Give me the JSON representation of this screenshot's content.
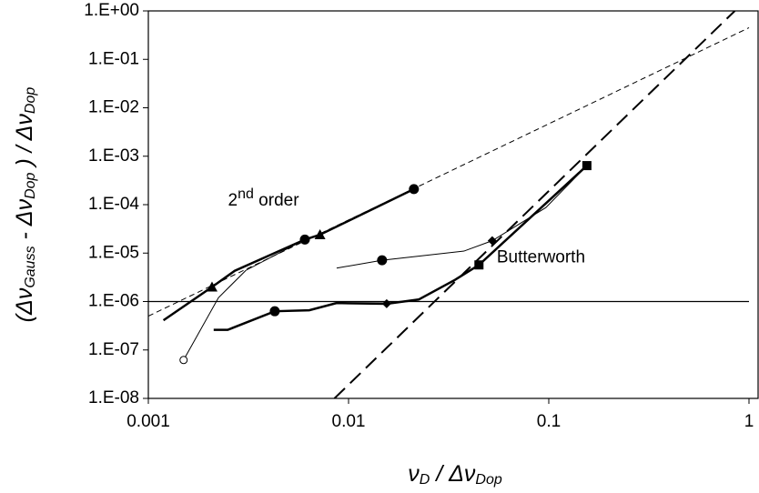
{
  "chart_data": {
    "type": "line",
    "log_x": true,
    "log_y": true,
    "xlim": [
      0.001,
      1
    ],
    "xticks": [
      0.001,
      0.01,
      0.1,
      1
    ],
    "ylim": [
      1e-08,
      1
    ],
    "yticks": [
      {
        "value": 1e-08,
        "label": "1.E-08"
      },
      {
        "value": 1e-07,
        "label": "1.E-07"
      },
      {
        "value": 1e-06,
        "label": "1.E-06"
      },
      {
        "value": 1e-05,
        "label": "1.E-05"
      },
      {
        "value": 0.0001,
        "label": "1.E-04"
      },
      {
        "value": 0.001,
        "label": "1.E-03"
      },
      {
        "value": 0.01,
        "label": "1.E-02"
      },
      {
        "value": 0.1,
        "label": "1.E-01"
      },
      {
        "value": 1,
        "label": "1.E+00"
      }
    ],
    "x_label": [
      "ν",
      "D",
      " / Δν",
      "Dop"
    ],
    "y_label": [
      "(Δν",
      "Gauss",
      " - Δν",
      "Dop",
      " ) / Δν",
      "Dop"
    ],
    "annotations": [
      {
        "parts": [
          "2",
          "nd",
          " order"
        ],
        "x": 0.0025,
        "y": 0.00012
      },
      {
        "parts": [
          "Butterworth"
        ],
        "x": 0.055,
        "y": 8e-06
      }
    ],
    "series": [
      {
        "color": "#000",
        "width": 1,
        "dash": "6 4",
        "x": [
          0.001,
          1
        ],
        "values": [
          5e-07,
          0.45
        ]
      },
      {
        "color": "#000",
        "width": 2,
        "dash": "16 8",
        "x": [
          0.0085,
          0.85
        ],
        "values": [
          1e-08,
          1
        ]
      },
      {
        "color": "#000",
        "width": 1.2,
        "dash": null,
        "x": [
          0.001,
          1
        ],
        "values": [
          1e-06,
          1e-06
        ]
      },
      {
        "color": "#000",
        "width": 2.5,
        "dash": null,
        "x": [
          0.00119,
          0.00208,
          0.0027,
          0.00605,
          0.0072,
          0.0212
        ],
        "values": [
          4.1e-07,
          2e-06,
          4.3e-06,
          1.9e-05,
          2.4e-05,
          0.00021
        ]
      },
      {
        "color": "#000",
        "width": 1,
        "dash": null,
        "x": [
          0.0015,
          0.00224,
          0.00307,
          0.00605
        ],
        "values": [
          6.2e-08,
          1.2e-06,
          4.4e-06,
          1.9e-05
        ]
      },
      {
        "color": "#000",
        "width": 1,
        "dash": null,
        "x": [
          0.00872,
          0.0147,
          0.0377,
          0.0522,
          0.0967,
          0.155
        ],
        "values": [
          4.9e-06,
          7.1e-06,
          1.1e-05,
          1.8e-05,
          8.7e-05,
          0.00064
        ]
      },
      {
        "color": "#000",
        "width": 2.5,
        "dash": null,
        "x": [
          0.00212,
          0.00249,
          0.00428,
          0.00636,
          0.00872,
          0.0155,
          0.0224,
          0.034,
          0.0448,
          0.155
        ],
        "values": [
          2.6e-07,
          2.6e-07,
          6.3e-07,
          6.6e-07,
          9.3e-07,
          9e-07,
          1.1e-06,
          2.8e-06,
          5.7e-06,
          0.00064
        ]
      }
    ],
    "markers": [
      {
        "shape": "triangle",
        "x": [
          0.00208,
          0.0072
        ],
        "values": [
          2e-06,
          2.4e-05
        ]
      },
      {
        "shape": "circle",
        "x": [
          0.00605,
          0.0212,
          0.0147,
          0.00428
        ],
        "values": [
          1.9e-05,
          0.00021,
          7.1e-06,
          6.3e-07
        ]
      },
      {
        "shape": "diamond",
        "x": [
          0.0522,
          0.0155
        ],
        "values": [
          1.8e-05,
          9e-07
        ]
      },
      {
        "shape": "square",
        "x": [
          0.155,
          0.0448
        ],
        "values": [
          0.00064,
          5.7e-06
        ]
      },
      {
        "shape": "open-circle",
        "x": [
          0.0015
        ],
        "values": [
          6.2e-08
        ]
      }
    ]
  }
}
